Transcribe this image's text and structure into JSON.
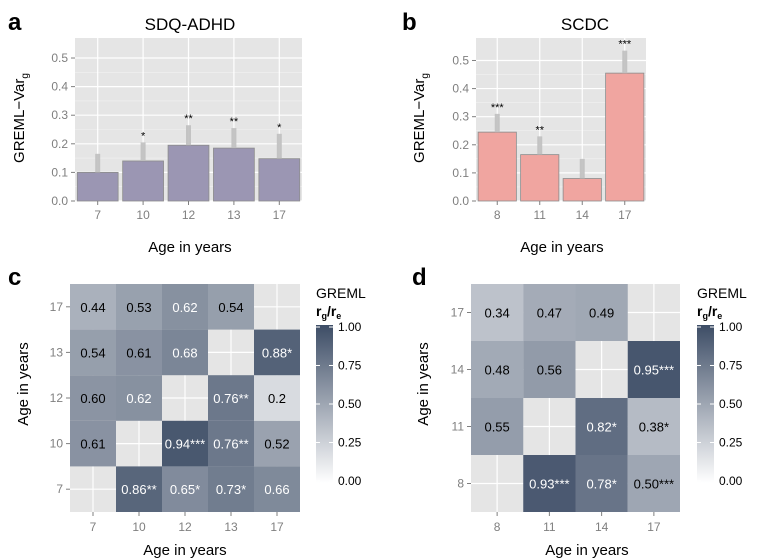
{
  "chart_data": [
    {
      "panel": "a",
      "type": "bar",
      "title": "SDQ-ADHD",
      "xlabel": "Age in years",
      "ylabel": "GREML−Var",
      "ylabel_sub": "g",
      "ylim": [
        0,
        0.57
      ],
      "yticks": [
        "0.0",
        "0.1",
        "0.2",
        "0.3",
        "0.4",
        "0.5"
      ],
      "categories": [
        "7",
        "10",
        "12",
        "13",
        "17"
      ],
      "values": [
        0.1,
        0.14,
        0.195,
        0.185,
        0.148
      ],
      "error_upper": [
        0.165,
        0.205,
        0.265,
        0.255,
        0.235
      ],
      "significance": [
        "",
        "*",
        "**",
        "**",
        "*"
      ],
      "bar_color": "#9b96b3",
      "grid": true
    },
    {
      "panel": "b",
      "type": "bar",
      "title": "SCDC",
      "xlabel": "Age in years",
      "ylabel": "GREML−Var",
      "ylabel_sub": "g",
      "ylim": [
        0,
        0.58
      ],
      "yticks": [
        "0.0",
        "0.1",
        "0.2",
        "0.3",
        "0.4",
        "0.5"
      ],
      "categories": [
        "8",
        "11",
        "14",
        "17"
      ],
      "values": [
        0.245,
        0.165,
        0.08,
        0.455
      ],
      "error_upper": [
        0.31,
        0.23,
        0.15,
        0.535
      ],
      "significance": [
        "***",
        "**",
        "",
        "***"
      ],
      "bar_color": "#f0a5a0",
      "grid": true
    },
    {
      "panel": "c",
      "type": "heatmap",
      "xlabel": "Age in years",
      "ylabel": "Age in years",
      "x_categories": [
        "7",
        "10",
        "12",
        "13",
        "17"
      ],
      "y_categories": [
        "7",
        "10",
        "12",
        "13",
        "17"
      ],
      "cells": [
        {
          "x": "7",
          "y": "10",
          "value": 0.61,
          "label": "0.61"
        },
        {
          "x": "7",
          "y": "12",
          "value": 0.6,
          "label": "0.60"
        },
        {
          "x": "7",
          "y": "13",
          "value": 0.54,
          "label": "0.54"
        },
        {
          "x": "7",
          "y": "17",
          "value": 0.44,
          "label": "0.44"
        },
        {
          "x": "10",
          "y": "7",
          "value": 0.86,
          "label": "0.86**"
        },
        {
          "x": "10",
          "y": "12",
          "value": 0.62,
          "label": "0.62"
        },
        {
          "x": "10",
          "y": "13",
          "value": 0.61,
          "label": "0.61"
        },
        {
          "x": "10",
          "y": "17",
          "value": 0.53,
          "label": "0.53"
        },
        {
          "x": "12",
          "y": "7",
          "value": 0.65,
          "label": "0.65*"
        },
        {
          "x": "12",
          "y": "10",
          "value": 0.94,
          "label": "0.94***"
        },
        {
          "x": "12",
          "y": "13",
          "value": 0.68,
          "label": "0.68"
        },
        {
          "x": "12",
          "y": "17",
          "value": 0.62,
          "label": "0.62"
        },
        {
          "x": "13",
          "y": "7",
          "value": 0.73,
          "label": "0.73*"
        },
        {
          "x": "13",
          "y": "10",
          "value": 0.76,
          "label": "0.76**"
        },
        {
          "x": "13",
          "y": "12",
          "value": 0.76,
          "label": "0.76**"
        },
        {
          "x": "13",
          "y": "17",
          "value": 0.54,
          "label": "0.54"
        },
        {
          "x": "17",
          "y": "7",
          "value": 0.66,
          "label": "0.66"
        },
        {
          "x": "17",
          "y": "10",
          "value": 0.52,
          "label": "0.52"
        },
        {
          "x": "17",
          "y": "12",
          "value": 0.2,
          "label": "0.2"
        },
        {
          "x": "17",
          "y": "13",
          "value": 0.88,
          "label": "0.88*"
        }
      ],
      "legend": {
        "title": "GREML",
        "subtitle_main": "r",
        "subtitle_sub1": "g",
        "subtitle_sep": "/r",
        "subtitle_sub2": "e",
        "ticks": [
          "1.00",
          "0.75",
          "0.50",
          "0.25",
          "0.00"
        ]
      },
      "color_low": "#ffffff",
      "color_high": "#3d4d66"
    },
    {
      "panel": "d",
      "type": "heatmap",
      "xlabel": "Age in years",
      "ylabel": "Age in years",
      "x_categories": [
        "8",
        "11",
        "14",
        "17"
      ],
      "y_categories": [
        "8",
        "11",
        "14",
        "17"
      ],
      "cells": [
        {
          "x": "8",
          "y": "11",
          "value": 0.55,
          "label": "0.55"
        },
        {
          "x": "8",
          "y": "14",
          "value": 0.48,
          "label": "0.48"
        },
        {
          "x": "8",
          "y": "17",
          "value": 0.34,
          "label": "0.34"
        },
        {
          "x": "11",
          "y": "8",
          "value": 0.93,
          "label": "0.93***"
        },
        {
          "x": "11",
          "y": "14",
          "value": 0.56,
          "label": "0.56"
        },
        {
          "x": "11",
          "y": "17",
          "value": 0.47,
          "label": "0.47"
        },
        {
          "x": "14",
          "y": "8",
          "value": 0.78,
          "label": "0.78*"
        },
        {
          "x": "14",
          "y": "11",
          "value": 0.82,
          "label": "0.82*"
        },
        {
          "x": "14",
          "y": "17",
          "value": 0.49,
          "label": "0.49"
        },
        {
          "x": "17",
          "y": "8",
          "value": 0.5,
          "label": "0.50***"
        },
        {
          "x": "17",
          "y": "11",
          "value": 0.38,
          "label": "0.38*"
        },
        {
          "x": "17",
          "y": "14",
          "value": 0.95,
          "label": "0.95***"
        }
      ],
      "legend": {
        "title": "GREML",
        "subtitle_main": "r",
        "subtitle_sub1": "g",
        "subtitle_sep": "/r",
        "subtitle_sub2": "e",
        "ticks": [
          "1.00",
          "0.75",
          "0.50",
          "0.25",
          "0.00"
        ]
      },
      "color_low": "#ffffff",
      "color_high": "#3d4d66"
    }
  ],
  "panel_bg": "#e5e5e5",
  "grid_color": "#ffffff"
}
